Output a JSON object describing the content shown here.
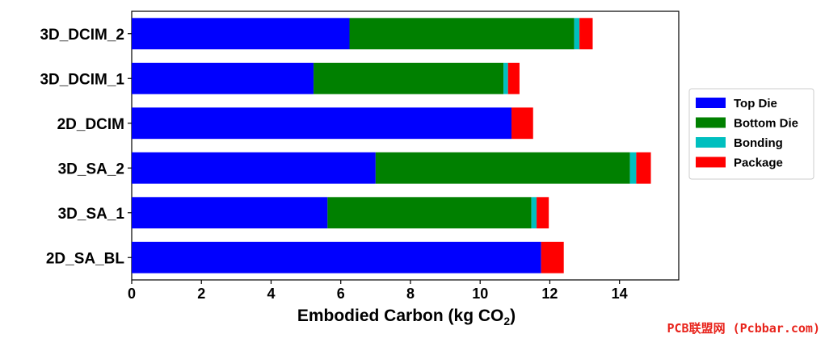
{
  "chart_data": {
    "type": "bar",
    "orientation": "horizontal",
    "stacked": true,
    "categories": [
      "2D_SA_BL",
      "3D_SA_1",
      "3D_SA_2",
      "2D_DCIM",
      "3D_DCIM_1",
      "3D_DCIM_2"
    ],
    "series": [
      {
        "name": "Top Die",
        "color": "#0000ff",
        "values": [
          11.75,
          5.62,
          7.0,
          10.9,
          5.22,
          6.25
        ]
      },
      {
        "name": "Bottom Die",
        "color": "#008000",
        "values": [
          0.0,
          5.85,
          7.3,
          0.0,
          5.45,
          6.45
        ]
      },
      {
        "name": "Bonding",
        "color": "#00bfbf",
        "values": [
          0.0,
          0.15,
          0.18,
          0.0,
          0.13,
          0.15
        ]
      },
      {
        "name": "Package",
        "color": "#ff0000",
        "values": [
          0.65,
          0.35,
          0.42,
          0.62,
          0.33,
          0.38
        ]
      }
    ],
    "xlabel": "Embodied Carbon (kg CO",
    "xlabel_subscript": "2",
    "xlabel_suffix": ")",
    "ylabel": "",
    "xlim": [
      0,
      15.7
    ],
    "xticks": [
      0,
      2,
      4,
      6,
      8,
      10,
      12,
      14
    ],
    "grid": false,
    "legend_position": "center-right"
  },
  "watermark": "PCB联盟网 (Pcbbar.com)"
}
